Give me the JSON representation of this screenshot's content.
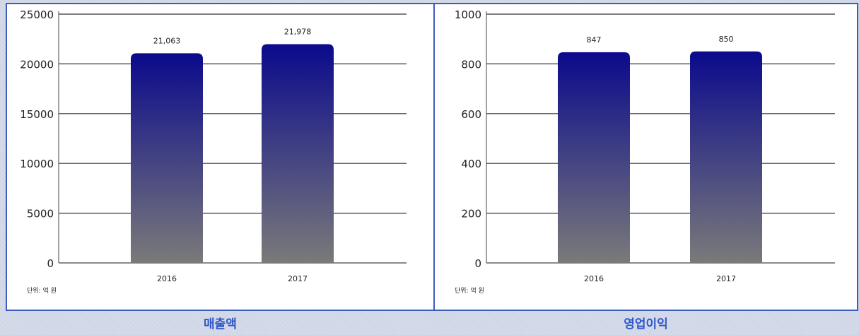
{
  "chart_data": [
    {
      "type": "bar",
      "categories": [
        "2016",
        "2017"
      ],
      "values": [
        21063,
        21978
      ],
      "data_labels": [
        "21,063",
        "21,978"
      ],
      "ylim": [
        0,
        25000
      ],
      "yticks": [
        "0",
        "5000",
        "10000",
        "15000",
        "20000",
        "25000"
      ],
      "unit_note": "단위: 억 원",
      "caption": "매출액",
      "grid": true,
      "bar_gradient": [
        "#0b0a8c",
        "#7a7a7a"
      ]
    },
    {
      "type": "bar",
      "categories": [
        "2016",
        "2017"
      ],
      "values": [
        847,
        850
      ],
      "data_labels": [
        "847",
        "850"
      ],
      "ylim": [
        0,
        1000
      ],
      "yticks": [
        "0",
        "200",
        "400",
        "600",
        "800",
        "1000"
      ],
      "unit_note": "단위: 억 원",
      "caption": "영업이익",
      "grid": true,
      "bar_gradient": [
        "#0b0a8c",
        "#7a7a7a"
      ]
    }
  ],
  "colors": {
    "frame_border": "#3d5cbf",
    "caption_text": "#2f57c9",
    "grid_line": "#333333"
  }
}
